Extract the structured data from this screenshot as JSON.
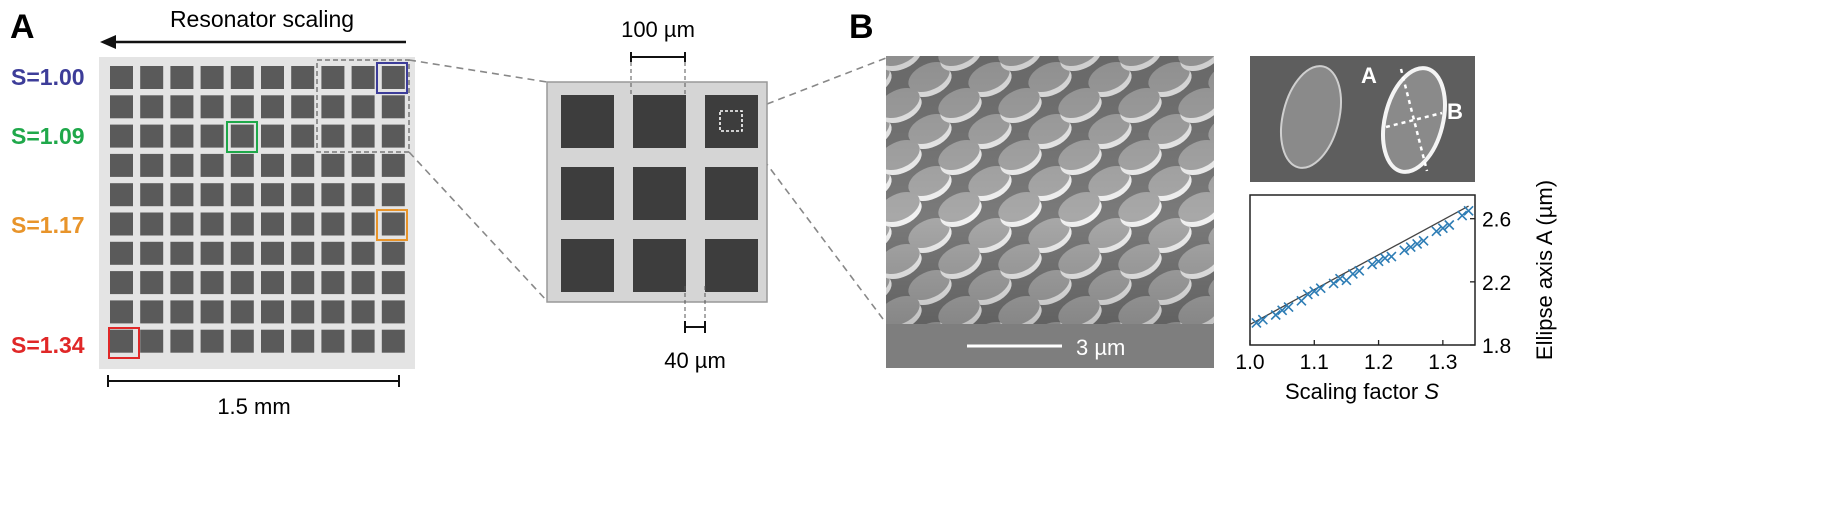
{
  "panel_labels": {
    "a": "A",
    "b": "B"
  },
  "panel_a": {
    "arrow_label": "Resonator scaling",
    "scale_labels": [
      {
        "text": "S=1.00",
        "color": "#3d3d99"
      },
      {
        "text": "S=1.09",
        "color": "#1fa84a"
      },
      {
        "text": "S=1.17",
        "color": "#e8942a"
      },
      {
        "text": "S=1.34",
        "color": "#e02727"
      }
    ],
    "array": {
      "rows": 10,
      "cols": 10
    },
    "scale_bar_label": "1.5 mm",
    "zoom_top_label": "100 µm",
    "zoom_bottom_label": "40 µm"
  },
  "panel_b": {
    "sem_scale_label": "3 µm",
    "ellipse_axis_labels": {
      "a": "A",
      "b": "B"
    }
  },
  "chart_data": {
    "type": "scatter",
    "xlabel": "Scaling factor S",
    "ylabel": "Ellipse axis A (µm)",
    "xlim": [
      1.0,
      1.35
    ],
    "ylim": [
      1.8,
      2.75
    ],
    "x_ticks": [
      "1.0",
      "1.1",
      "1.2",
      "1.3"
    ],
    "y_ticks": [
      "1.8",
      "2.2",
      "2.6"
    ],
    "y_axis_side": "right",
    "marker": "x",
    "marker_color": "#2e7db5",
    "fit_line": {
      "x": [
        1.0,
        1.34
      ],
      "y": [
        1.93,
        2.68
      ]
    },
    "points": {
      "x": [
        1.01,
        1.02,
        1.04,
        1.05,
        1.06,
        1.08,
        1.09,
        1.1,
        1.11,
        1.13,
        1.14,
        1.15,
        1.16,
        1.17,
        1.19,
        1.2,
        1.21,
        1.22,
        1.24,
        1.25,
        1.26,
        1.27,
        1.29,
        1.3,
        1.31,
        1.33,
        1.34
      ],
      "y": [
        1.94,
        1.96,
        1.99,
        2.02,
        2.04,
        2.08,
        2.12,
        2.14,
        2.16,
        2.19,
        2.22,
        2.21,
        2.25,
        2.27,
        2.31,
        2.33,
        2.35,
        2.36,
        2.4,
        2.42,
        2.44,
        2.46,
        2.52,
        2.54,
        2.56,
        2.62,
        2.65
      ]
    }
  }
}
